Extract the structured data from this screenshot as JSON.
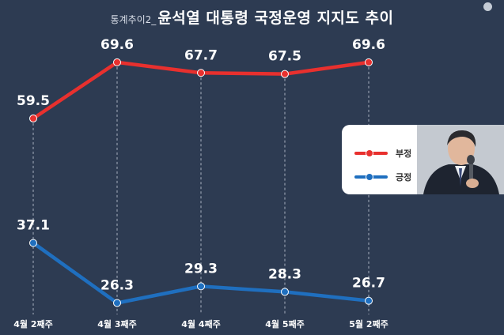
{
  "title": {
    "prefix": "통계추이2_",
    "main": "윤석열 대통령 국정운영 지지도 추이"
  },
  "chart_data": {
    "type": "line",
    "categories": [
      "4월 2째주",
      "4월 3째주",
      "4월 4째주",
      "4월 5째주",
      "5월 2째주"
    ],
    "series": [
      {
        "name": "부정",
        "color": "#e8302e",
        "values": [
          59.5,
          69.6,
          67.7,
          67.5,
          69.6
        ]
      },
      {
        "name": "긍정",
        "color": "#1f6fbf",
        "values": [
          37.1,
          26.3,
          29.3,
          28.3,
          26.7
        ]
      }
    ],
    "ylim": [
      20,
      75
    ],
    "grid": "vertical-dashed",
    "legend": "right"
  },
  "icons": {
    "portrait": "president-portrait-photo",
    "corner": "circle-icon"
  }
}
